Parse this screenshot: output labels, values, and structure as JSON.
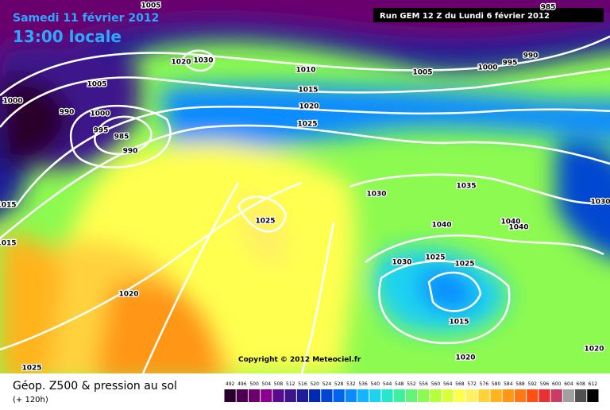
{
  "header": {
    "date": "Samedi 11 février 2012",
    "time": "13:00 locale",
    "run": "Run GEM 12 Z du Lundi 6 février 2012"
  },
  "isobar_labels": [
    "1005",
    "985",
    "990",
    "995",
    "1000",
    "1005",
    "1020",
    "1030",
    "1010",
    "1015",
    "1020",
    "1025",
    "1005",
    "1000",
    "990",
    "1000",
    "995",
    "985",
    "990",
    "1030",
    "1035",
    "1025",
    "1040",
    "1040",
    "1040",
    "1030",
    "1015",
    "1015",
    "1030",
    "1025",
    "1025",
    "1020",
    "1015",
    "1020",
    "1020",
    "1025"
  ],
  "copyright": "Copyright © 2012 Meteociel.fr",
  "legend": {
    "title": "Géop. Z500 & pression au sol",
    "lead": "(+ 120h)",
    "scale": [
      "492",
      "496",
      "500",
      "504",
      "508",
      "512",
      "516",
      "520",
      "524",
      "528",
      "532",
      "536",
      "540",
      "544",
      "548",
      "552",
      "556",
      "560",
      "564",
      "568",
      "572",
      "576",
      "580",
      "584",
      "588",
      "592",
      "596",
      "600",
      "604",
      "608",
      "612"
    ],
    "colors": [
      "#2a002a",
      "#4b0050",
      "#6a006e",
      "#8a008c",
      "#5a0a8c",
      "#3c148c",
      "#1e1e96",
      "#0028b4",
      "#0046d2",
      "#0064f0",
      "#0a8cff",
      "#14b4ff",
      "#1ed2f0",
      "#28e6c8",
      "#3cf0a0",
      "#64f578",
      "#8cfa50",
      "#b4ff3c",
      "#dcff3c",
      "#ffff50",
      "#fff064",
      "#ffd23c",
      "#ffb41e",
      "#ff9614",
      "#ff7814",
      "#ff5014",
      "#e63232",
      "#c83c64",
      "#a0a0a0",
      "#505050",
      "#000000"
    ]
  }
}
